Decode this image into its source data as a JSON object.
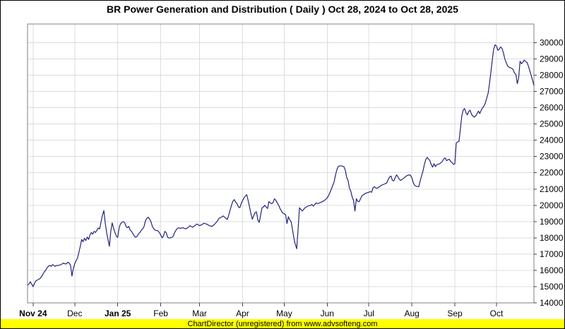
{
  "title": "BR Power Generation and Distribution ( Daily ) Oct 28, 2024 to Oct 28, 2025",
  "footer": {
    "text": "ChartDirector (unregistered) from www.advsofteng.com",
    "bg_color": "#ffff00",
    "text_color": "#000000"
  },
  "colors": {
    "line": "#22227e",
    "grid": "#dcdcdc",
    "plot_border": "#808080",
    "tick": "#404040",
    "label": "#000000",
    "background": "#ffffff"
  },
  "chart_data": {
    "type": "line",
    "title": "BR Power Generation and Distribution ( Daily ) Oct 28, 2024 to Oct 28, 2025",
    "x_start": "Oct 28, 2024",
    "x_end": "Oct 28, 2025",
    "grid": true,
    "legend": "none",
    "y_axis_side": "right",
    "ylim": [
      14000,
      31150
    ],
    "xlim_days": [
      0,
      365
    ],
    "y_ticks": [
      14000,
      15000,
      16000,
      17000,
      18000,
      19000,
      20000,
      21000,
      22000,
      23000,
      24000,
      25000,
      26000,
      27000,
      28000,
      29000,
      30000
    ],
    "x_axis_labels": [
      {
        "label": "Nov 24",
        "day": 4,
        "bold": true
      },
      {
        "label": "Dec",
        "day": 34,
        "bold": false
      },
      {
        "label": "Jan 25",
        "day": 65,
        "bold": true
      },
      {
        "label": "Feb",
        "day": 96,
        "bold": false
      },
      {
        "label": "Mar",
        "day": 124,
        "bold": false
      },
      {
        "label": "Apr",
        "day": 155,
        "bold": false
      },
      {
        "label": "May",
        "day": 185,
        "bold": false
      },
      {
        "label": "Jun",
        "day": 216,
        "bold": false
      },
      {
        "label": "Jul",
        "day": 246,
        "bold": false
      },
      {
        "label": "Aug",
        "day": 277,
        "bold": false
      },
      {
        "label": "Sep",
        "day": 308,
        "bold": false
      },
      {
        "label": "Oct",
        "day": 338,
        "bold": false
      }
    ],
    "points": [
      [
        0,
        15100
      ],
      [
        1,
        15150
      ],
      [
        2,
        15300
      ],
      [
        3,
        15150
      ],
      [
        4,
        15000
      ],
      [
        5,
        15200
      ],
      [
        6,
        15350
      ],
      [
        7,
        15400
      ],
      [
        8,
        15450
      ],
      [
        9,
        15500
      ],
      [
        10,
        15600
      ],
      [
        11,
        15750
      ],
      [
        12,
        15900
      ],
      [
        13,
        16000
      ],
      [
        14,
        16150
      ],
      [
        15,
        16250
      ],
      [
        16,
        16300
      ],
      [
        17,
        16250
      ],
      [
        18,
        16350
      ],
      [
        19,
        16300
      ],
      [
        20,
        16250
      ],
      [
        21,
        16300
      ],
      [
        22,
        16300
      ],
      [
        23,
        16320
      ],
      [
        24,
        16350
      ],
      [
        25,
        16400
      ],
      [
        26,
        16450
      ],
      [
        27,
        16400
      ],
      [
        28,
        16400
      ],
      [
        29,
        16500
      ],
      [
        30,
        16450
      ],
      [
        31,
        16300
      ],
      [
        32,
        15650
      ],
      [
        33,
        16100
      ],
      [
        34,
        16400
      ],
      [
        35,
        16600
      ],
      [
        36,
        16750
      ],
      [
        37,
        17100
      ],
      [
        38,
        17470
      ],
      [
        39,
        17900
      ],
      [
        40,
        17760
      ],
      [
        41,
        17970
      ],
      [
        42,
        17830
      ],
      [
        43,
        18050
      ],
      [
        44,
        17900
      ],
      [
        45,
        18180
      ],
      [
        46,
        18330
      ],
      [
        47,
        18220
      ],
      [
        48,
        18400
      ],
      [
        49,
        18330
      ],
      [
        50,
        18470
      ],
      [
        51,
        18610
      ],
      [
        52,
        18550
      ],
      [
        53,
        18990
      ],
      [
        54,
        19400
      ],
      [
        55,
        19670
      ],
      [
        56,
        18920
      ],
      [
        57,
        18330
      ],
      [
        58,
        17900
      ],
      [
        59,
        17480
      ],
      [
        60,
        18400
      ],
      [
        61,
        18920
      ],
      [
        62,
        18600
      ],
      [
        63,
        18330
      ],
      [
        64,
        18100
      ],
      [
        65,
        18030
      ],
      [
        66,
        18620
      ],
      [
        67,
        18860
      ],
      [
        68,
        18950
      ],
      [
        69,
        19000
      ],
      [
        70,
        18930
      ],
      [
        71,
        18700
      ],
      [
        72,
        18620
      ],
      [
        73,
        18700
      ],
      [
        74,
        18470
      ],
      [
        75,
        18400
      ],
      [
        76,
        18250
      ],
      [
        77,
        18100
      ],
      [
        78,
        18030
      ],
      [
        79,
        18100
      ],
      [
        80,
        18250
      ],
      [
        81,
        18330
      ],
      [
        82,
        18470
      ],
      [
        83,
        18550
      ],
      [
        84,
        18700
      ],
      [
        85,
        19050
      ],
      [
        86,
        19200
      ],
      [
        87,
        19270
      ],
      [
        88,
        19150
      ],
      [
        89,
        18980
      ],
      [
        90,
        18700
      ],
      [
        91,
        18550
      ],
      [
        92,
        18470
      ],
      [
        93,
        18450
      ],
      [
        94,
        18430
      ],
      [
        95,
        18330
      ],
      [
        96,
        18180
      ],
      [
        97,
        18000
      ],
      [
        98,
        18120
      ],
      [
        99,
        18400
      ],
      [
        100,
        18300
      ],
      [
        101,
        18030
      ],
      [
        102,
        17990
      ],
      [
        103,
        18000
      ],
      [
        104,
        18030
      ],
      [
        105,
        18100
      ],
      [
        106,
        18330
      ],
      [
        107,
        18470
      ],
      [
        108,
        18580
      ],
      [
        109,
        18620
      ],
      [
        110,
        18580
      ],
      [
        112,
        18620
      ],
      [
        114,
        18550
      ],
      [
        116,
        18650
      ],
      [
        117,
        18750
      ],
      [
        119,
        18650
      ],
      [
        121,
        18780
      ],
      [
        122,
        18850
      ],
      [
        124,
        18750
      ],
      [
        126,
        18820
      ],
      [
        127,
        18900
      ],
      [
        129,
        18850
      ],
      [
        130,
        18800
      ],
      [
        131,
        18750
      ],
      [
        133,
        18700
      ],
      [
        135,
        18850
      ],
      [
        137,
        19050
      ],
      [
        138,
        19200
      ],
      [
        140,
        19280
      ],
      [
        141,
        19350
      ],
      [
        143,
        19200
      ],
      [
        144,
        19130
      ],
      [
        145,
        19400
      ],
      [
        146,
        19700
      ],
      [
        147,
        20000
      ],
      [
        148,
        20250
      ],
      [
        149,
        20350
      ],
      [
        150,
        20200
      ],
      [
        151,
        20100
      ],
      [
        152,
        19900
      ],
      [
        153,
        19850
      ],
      [
        154,
        20100
      ],
      [
        155,
        20300
      ],
      [
        156,
        20450
      ],
      [
        157,
        20570
      ],
      [
        158,
        20650
      ],
      [
        159,
        20300
      ],
      [
        160,
        19900
      ],
      [
        161,
        19500
      ],
      [
        162,
        19150
      ],
      [
        163,
        19350
      ],
      [
        164,
        19550
      ],
      [
        165,
        19600
      ],
      [
        166,
        19100
      ],
      [
        167,
        18950
      ],
      [
        168,
        19400
      ],
      [
        169,
        19850
      ],
      [
        170,
        19900
      ],
      [
        171,
        20000
      ],
      [
        172,
        19900
      ],
      [
        173,
        19800
      ],
      [
        174,
        20230
      ],
      [
        175,
        20150
      ],
      [
        176,
        20100
      ],
      [
        177,
        20170
      ],
      [
        178,
        20400
      ],
      [
        179,
        20300
      ],
      [
        180,
        20150
      ],
      [
        181,
        20000
      ],
      [
        182,
        19800
      ],
      [
        183,
        19650
      ],
      [
        184,
        19520
      ],
      [
        185,
        19480
      ],
      [
        186,
        19430
      ],
      [
        187,
        18880
      ],
      [
        188,
        19300
      ],
      [
        189,
        19100
      ],
      [
        190,
        19000
      ],
      [
        191,
        18500
      ],
      [
        192,
        17970
      ],
      [
        193,
        17600
      ],
      [
        194,
        17330
      ],
      [
        195,
        18500
      ],
      [
        196,
        19850
      ],
      [
        197,
        19750
      ],
      [
        198,
        19650
      ],
      [
        199,
        19750
      ],
      [
        200,
        19850
      ],
      [
        201,
        19900
      ],
      [
        202,
        19950
      ],
      [
        204,
        20000
      ],
      [
        205,
        20050
      ],
      [
        206,
        19950
      ],
      [
        208,
        20150
      ],
      [
        209,
        20100
      ],
      [
        211,
        20170
      ],
      [
        212,
        20200
      ],
      [
        213,
        20250
      ],
      [
        214,
        20300
      ],
      [
        216,
        20450
      ],
      [
        217,
        20600
      ],
      [
        218,
        20800
      ],
      [
        219,
        21000
      ],
      [
        220,
        21230
      ],
      [
        221,
        21450
      ],
      [
        222,
        21870
      ],
      [
        223,
        22200
      ],
      [
        224,
        22400
      ],
      [
        225,
        22420
      ],
      [
        226,
        22430
      ],
      [
        227,
        22400
      ],
      [
        228,
        22380
      ],
      [
        229,
        22170
      ],
      [
        230,
        21730
      ],
      [
        231,
        21530
      ],
      [
        232,
        21070
      ],
      [
        233,
        20870
      ],
      [
        234,
        20500
      ],
      [
        235,
        20300
      ],
      [
        236,
        19650
      ],
      [
        237,
        20400
      ],
      [
        238,
        20250
      ],
      [
        239,
        20220
      ],
      [
        240,
        20400
      ],
      [
        241,
        20580
      ],
      [
        242,
        20650
      ],
      [
        243,
        20700
      ],
      [
        244,
        20750
      ],
      [
        245,
        20780
      ],
      [
        246,
        20800
      ],
      [
        247,
        20850
      ],
      [
        248,
        20800
      ],
      [
        249,
        21070
      ],
      [
        250,
        21150
      ],
      [
        251,
        21070
      ],
      [
        252,
        21050
      ],
      [
        253,
        21100
      ],
      [
        255,
        21230
      ],
      [
        257,
        21300
      ],
      [
        259,
        21380
      ],
      [
        260,
        21600
      ],
      [
        261,
        21740
      ],
      [
        262,
        21800
      ],
      [
        263,
        21530
      ],
      [
        264,
        21500
      ],
      [
        265,
        21700
      ],
      [
        266,
        21870
      ],
      [
        267,
        21750
      ],
      [
        268,
        21600
      ],
      [
        269,
        21530
      ],
      [
        270,
        21600
      ],
      [
        271,
        21660
      ],
      [
        272,
        21730
      ],
      [
        273,
        21800
      ],
      [
        274,
        21850
      ],
      [
        275,
        21870
      ],
      [
        276,
        21850
      ],
      [
        277,
        21700
      ],
      [
        278,
        21400
      ],
      [
        279,
        21230
      ],
      [
        280,
        21180
      ],
      [
        281,
        21150
      ],
      [
        282,
        21150
      ],
      [
        283,
        21500
      ],
      [
        284,
        21800
      ],
      [
        285,
        22100
      ],
      [
        286,
        22500
      ],
      [
        287,
        22800
      ],
      [
        288,
        22950
      ],
      [
        289,
        22850
      ],
      [
        290,
        22750
      ],
      [
        291,
        22500
      ],
      [
        292,
        22350
      ],
      [
        293,
        22560
      ],
      [
        294,
        22380
      ],
      [
        295,
        22500
      ],
      [
        296,
        22530
      ],
      [
        297,
        22550
      ],
      [
        298,
        22620
      ],
      [
        299,
        22700
      ],
      [
        300,
        22850
      ],
      [
        301,
        22920
      ],
      [
        302,
        22750
      ],
      [
        303,
        22800
      ],
      [
        304,
        22830
      ],
      [
        305,
        22700
      ],
      [
        306,
        22630
      ],
      [
        307,
        22520
      ],
      [
        308,
        22550
      ],
      [
        309,
        23820
      ],
      [
        310,
        23900
      ],
      [
        311,
        23930
      ],
      [
        312,
        24700
      ],
      [
        313,
        25490
      ],
      [
        314,
        25850
      ],
      [
        315,
        25950
      ],
      [
        316,
        25700
      ],
      [
        317,
        25560
      ],
      [
        318,
        25770
      ],
      [
        319,
        25850
      ],
      [
        320,
        25600
      ],
      [
        321,
        25490
      ],
      [
        322,
        25420
      ],
      [
        323,
        25500
      ],
      [
        324,
        25640
      ],
      [
        325,
        25790
      ],
      [
        326,
        25640
      ],
      [
        327,
        25850
      ],
      [
        328,
        26000
      ],
      [
        329,
        26100
      ],
      [
        330,
        26300
      ],
      [
        331,
        26600
      ],
      [
        332,
        26900
      ],
      [
        333,
        27500
      ],
      [
        334,
        28200
      ],
      [
        335,
        28960
      ],
      [
        336,
        29610
      ],
      [
        337,
        29870
      ],
      [
        338,
        29800
      ],
      [
        339,
        29530
      ],
      [
        340,
        29600
      ],
      [
        341,
        29740
      ],
      [
        342,
        29650
      ],
      [
        343,
        29380
      ],
      [
        344,
        29010
      ],
      [
        345,
        28790
      ],
      [
        346,
        28570
      ],
      [
        347,
        28500
      ],
      [
        348,
        28460
      ],
      [
        349,
        28420
      ],
      [
        350,
        28350
      ],
      [
        351,
        28130
      ],
      [
        352,
        28060
      ],
      [
        353,
        27480
      ],
      [
        354,
        27840
      ],
      [
        355,
        28860
      ],
      [
        356,
        28710
      ],
      [
        357,
        28800
      ],
      [
        358,
        28930
      ],
      [
        359,
        28850
      ],
      [
        360,
        28790
      ],
      [
        361,
        28570
      ],
      [
        362,
        28280
      ],
      [
        363,
        27990
      ],
      [
        364,
        27700
      ],
      [
        365,
        27380
      ]
    ]
  }
}
